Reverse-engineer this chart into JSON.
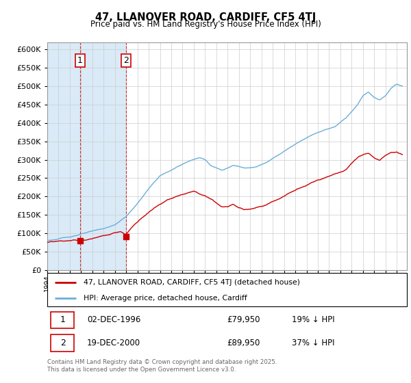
{
  "title": "47, LLANOVER ROAD, CARDIFF, CF5 4TJ",
  "subtitle": "Price paid vs. HM Land Registry's House Price Index (HPI)",
  "legend_entry1": "47, LLANOVER ROAD, CARDIFF, CF5 4TJ (detached house)",
  "legend_entry2": "HPI: Average price, detached house, Cardiff",
  "annotation1_date": "02-DEC-1996",
  "annotation1_price": "£79,950",
  "annotation1_hpi": "19% ↓ HPI",
  "annotation2_date": "19-DEC-2000",
  "annotation2_price": "£89,950",
  "annotation2_hpi": "37% ↓ HPI",
  "footer": "Contains HM Land Registry data © Crown copyright and database right 2025.\nThis data is licensed under the Open Government Licence v3.0.",
  "hpi_color": "#6baed6",
  "paid_color": "#cc0000",
  "annotation_color": "#cc0000",
  "background_color": "#ffffff",
  "grid_color": "#cccccc",
  "shade_color": "#daeaf7",
  "ylim": [
    0,
    620000
  ],
  "yticks": [
    0,
    50000,
    100000,
    150000,
    200000,
    250000,
    300000,
    350000,
    400000,
    450000,
    500000,
    550000,
    600000
  ],
  "sale1_x": 1996.92,
  "sale1_y": 79950,
  "sale2_x": 2000.97,
  "sale2_y": 89950,
  "xmin": 1994.0,
  "xmax": 2025.9
}
